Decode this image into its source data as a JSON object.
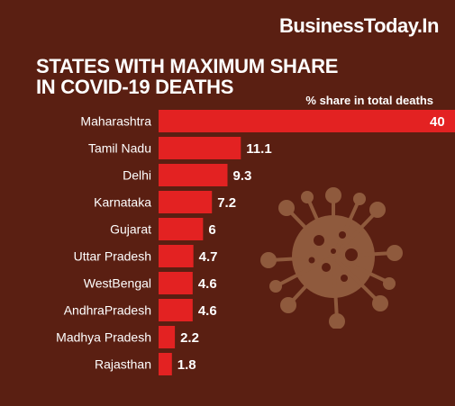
{
  "brand": "BusinessToday.In",
  "chart_data": {
    "type": "bar",
    "orientation": "horizontal",
    "title_lines": [
      "STATES WITH MAXIMUM SHARE",
      "IN COVID-19 DEATHS"
    ],
    "unit_label": "% share in total deaths",
    "categories": [
      "Maharashtra",
      "Tamil Nadu",
      "Delhi",
      "Karnataka",
      "Gujarat",
      "Uttar Pradesh",
      "WestBengal",
      "AndhraPradesh",
      "Madhya Pradesh",
      "Rajasthan"
    ],
    "values": [
      40,
      11.1,
      9.3,
      7.2,
      6,
      4.7,
      4.6,
      4.6,
      2.2,
      1.8
    ],
    "value_labels": [
      "40",
      "11.1",
      "9.3",
      "7.2",
      "6",
      "4.7",
      "4.6",
      "4.6",
      "2.2",
      "1.8"
    ],
    "xlim": [
      0,
      40
    ],
    "grid": false,
    "legend": "none"
  },
  "colors": {
    "background": "#5a1f12",
    "bar": "#e32222",
    "text": "#ffffff",
    "virus": "#8f5a3d"
  },
  "decoration": {
    "icon": "coronavirus-icon"
  }
}
